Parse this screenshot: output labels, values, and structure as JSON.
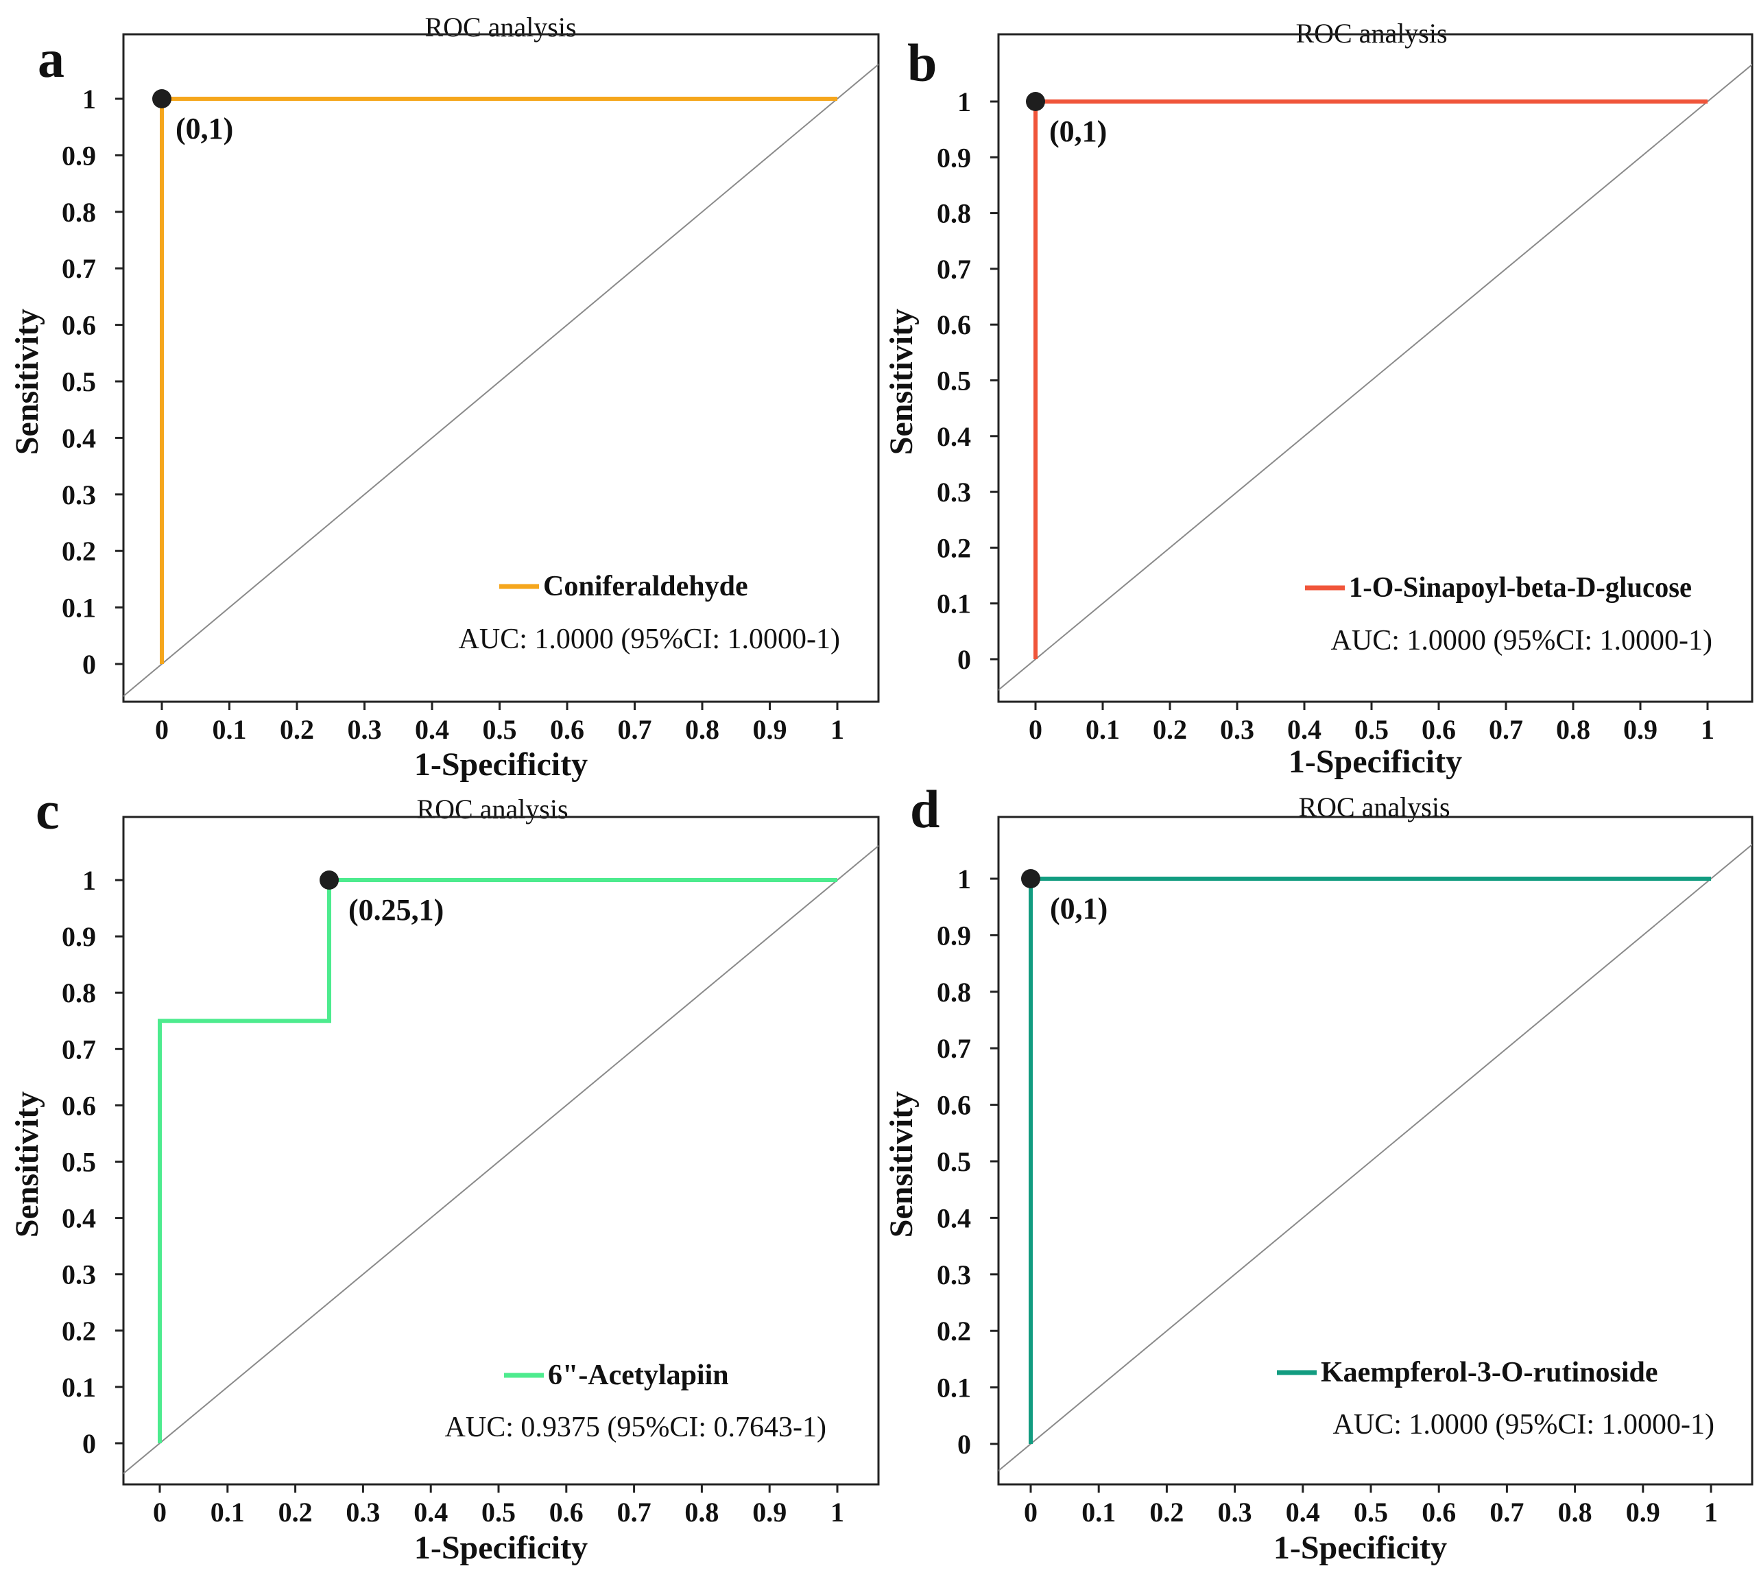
{
  "chart_data": [
    {
      "panel": "a",
      "type": "line",
      "title": "ROC analysis",
      "xlabel": "1-Specificity",
      "ylabel": "Sensitivity",
      "xticks": [
        "0",
        "0.1",
        "0.2",
        "0.3",
        "0.4",
        "0.5",
        "0.6",
        "0.7",
        "0.8",
        "0.9",
        "1"
      ],
      "yticks": [
        "0",
        "0.1",
        "0.2",
        "0.3",
        "0.4",
        "0.5",
        "0.6",
        "0.7",
        "0.8",
        "0.9",
        "1"
      ],
      "series": [
        {
          "name": "Coniferaldehyde",
          "color": "#f5a61c",
          "x": [
            0,
            0,
            1
          ],
          "y": [
            0,
            1,
            1
          ]
        }
      ],
      "reference_line": {
        "x": [
          0,
          1
        ],
        "y": [
          0,
          1
        ],
        "color": "#8a8a8a"
      },
      "highlight_point": {
        "x": 0,
        "y": 1,
        "label": "(0,1)"
      },
      "auc_text": "AUC: 1.0000 (95%CI: 1.0000-1)"
    },
    {
      "panel": "b",
      "type": "line",
      "title": "ROC analysis",
      "xlabel": "1-Specificity",
      "ylabel": "Sensitivity",
      "xticks": [
        "0",
        "0.1",
        "0.2",
        "0.3",
        "0.4",
        "0.5",
        "0.6",
        "0.7",
        "0.8",
        "0.9",
        "1"
      ],
      "yticks": [
        "0",
        "0.1",
        "0.2",
        "0.3",
        "0.4",
        "0.5",
        "0.6",
        "0.7",
        "0.8",
        "0.9",
        "1"
      ],
      "series": [
        {
          "name": "1-O-Sinapoyl-beta-D-glucose",
          "color": "#f0553a",
          "x": [
            0,
            0,
            1
          ],
          "y": [
            0,
            1,
            1
          ]
        }
      ],
      "reference_line": {
        "x": [
          0,
          1
        ],
        "y": [
          0,
          1
        ],
        "color": "#8a8a8a"
      },
      "highlight_point": {
        "x": 0,
        "y": 1,
        "label": "(0,1)"
      },
      "auc_text": "AUC: 1.0000 (95%CI: 1.0000-1)"
    },
    {
      "panel": "c",
      "type": "line",
      "title": "ROC analysis",
      "xlabel": "1-Specificity",
      "ylabel": "Sensitivity",
      "xticks": [
        "0",
        "0.1",
        "0.2",
        "0.3",
        "0.4",
        "0.5",
        "0.6",
        "0.7",
        "0.8",
        "0.9",
        "1"
      ],
      "yticks": [
        "0",
        "0.1",
        "0.2",
        "0.3",
        "0.4",
        "0.5",
        "0.6",
        "0.7",
        "0.8",
        "0.9",
        "1"
      ],
      "series": [
        {
          "name": "6\"-Acetylapiin",
          "color": "#4deb8e",
          "x": [
            0,
            0,
            0.25,
            0.25,
            1
          ],
          "y": [
            0,
            0.75,
            0.75,
            1,
            1
          ]
        }
      ],
      "reference_line": {
        "x": [
          0,
          1
        ],
        "y": [
          0,
          1
        ],
        "color": "#8a8a8a"
      },
      "highlight_point": {
        "x": 0.25,
        "y": 1,
        "label": "(0.25,1)"
      },
      "auc_text": "AUC: 0.9375 (95%CI: 0.7643-1)"
    },
    {
      "panel": "d",
      "type": "line",
      "title": "ROC analysis",
      "xlabel": "1-Specificity",
      "ylabel": "Sensitivity",
      "xticks": [
        "0",
        "0.1",
        "0.2",
        "0.3",
        "0.4",
        "0.5",
        "0.6",
        "0.7",
        "0.8",
        "0.9",
        "1"
      ],
      "yticks": [
        "0",
        "0.1",
        "0.2",
        "0.3",
        "0.4",
        "0.5",
        "0.6",
        "0.7",
        "0.8",
        "0.9",
        "1"
      ],
      "series": [
        {
          "name": "Kaempferol-3-O-rutinoside",
          "color": "#129c80",
          "x": [
            0,
            0,
            1
          ],
          "y": [
            0,
            1,
            1
          ]
        }
      ],
      "reference_line": {
        "x": [
          0,
          1
        ],
        "y": [
          0,
          1
        ],
        "color": "#8a8a8a"
      },
      "highlight_point": {
        "x": 0,
        "y": 1,
        "label": "(0,1)"
      },
      "auc_text": "AUC: 1.0000 (95%CI: 1.0000-1)"
    }
  ]
}
